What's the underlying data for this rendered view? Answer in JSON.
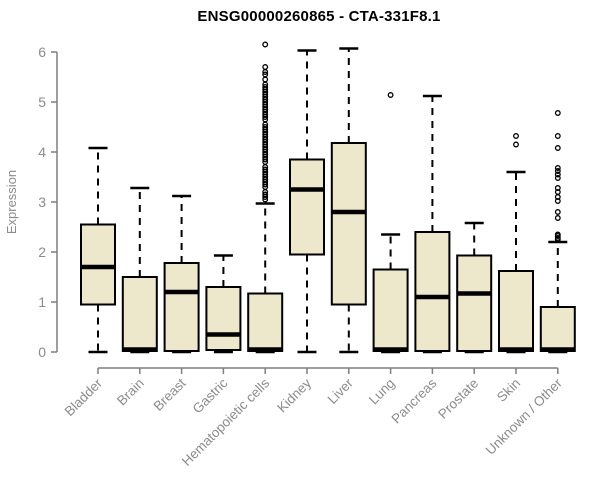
{
  "chart_data": {
    "type": "boxplot",
    "title": "ENSG00000260865 - CTA-331F8.1",
    "ylabel": "Expression",
    "xlabel": "",
    "ylim": [
      0,
      6
    ],
    "yticks": [
      0,
      1,
      2,
      3,
      4,
      5,
      6
    ],
    "grid": false,
    "legend": "none",
    "colors": {
      "box_fill": "#EDE7CB",
      "box_stroke": "#000000",
      "median": "#000000",
      "whisker": "#000000",
      "axis": "#7f7f7f",
      "tick_label": "#8c8c8c",
      "title": "#000000",
      "background": "#ffffff"
    },
    "categories": [
      "Bladder",
      "Brain",
      "Breast",
      "Gastric",
      "Hematopoietic cells",
      "Kidney",
      "Liver",
      "Lung",
      "Pancreas",
      "Prostate",
      "Skin",
      "Unknown / Other"
    ],
    "boxes": [
      {
        "category": "Bladder",
        "whisker_low": 0.0,
        "q1": 0.95,
        "median": 1.7,
        "q3": 2.55,
        "whisker_high": 4.08,
        "outliers": []
      },
      {
        "category": "Brain",
        "whisker_low": 0.0,
        "q1": 0.02,
        "median": 0.05,
        "q3": 1.5,
        "whisker_high": 3.28,
        "outliers": []
      },
      {
        "category": "Breast",
        "whisker_low": 0.0,
        "q1": 0.02,
        "median": 1.2,
        "q3": 1.78,
        "whisker_high": 3.12,
        "outliers": []
      },
      {
        "category": "Gastric",
        "whisker_low": 0.0,
        "q1": 0.04,
        "median": 0.35,
        "q3": 1.3,
        "whisker_high": 1.93,
        "outliers": []
      },
      {
        "category": "Hematopoietic cells",
        "whisker_low": 0.0,
        "q1": 0.02,
        "median": 0.05,
        "q3": 1.17,
        "whisker_high": 2.97,
        "outliers": [
          3.05,
          3.1,
          3.15,
          3.2,
          3.3,
          3.35,
          3.4,
          3.45,
          3.5,
          3.55,
          3.6,
          3.65,
          3.7,
          3.8,
          3.85,
          3.9,
          3.95,
          4.0,
          4.05,
          4.1,
          4.15,
          4.2,
          4.25,
          4.3,
          4.35,
          4.4,
          4.45,
          4.5,
          4.55,
          4.65,
          4.7,
          4.75,
          4.8,
          4.85,
          4.9,
          4.95,
          5.0,
          5.05,
          5.1,
          5.15,
          5.2,
          5.25,
          5.3,
          5.35,
          5.45,
          5.55,
          5.6,
          5.7,
          6.15
        ]
      },
      {
        "category": "Kidney",
        "whisker_low": 0.0,
        "q1": 1.95,
        "median": 3.25,
        "q3": 3.85,
        "whisker_high": 6.03,
        "outliers": []
      },
      {
        "category": "Liver",
        "whisker_low": 0.0,
        "q1": 0.95,
        "median": 2.8,
        "q3": 4.18,
        "whisker_high": 6.07,
        "outliers": []
      },
      {
        "category": "Lung",
        "whisker_low": 0.0,
        "q1": 0.02,
        "median": 0.05,
        "q3": 1.65,
        "whisker_high": 2.35,
        "outliers": [
          5.14
        ]
      },
      {
        "category": "Pancreas",
        "whisker_low": 0.0,
        "q1": 0.02,
        "median": 1.1,
        "q3": 2.4,
        "whisker_high": 5.12,
        "outliers": []
      },
      {
        "category": "Prostate",
        "whisker_low": 0.0,
        "q1": 0.02,
        "median": 1.17,
        "q3": 1.93,
        "whisker_high": 2.58,
        "outliers": []
      },
      {
        "category": "Skin",
        "whisker_low": 0.0,
        "q1": 0.02,
        "median": 0.05,
        "q3": 1.62,
        "whisker_high": 3.6,
        "outliers": [
          4.15,
          4.32
        ]
      },
      {
        "category": "Unknown / Other",
        "whisker_low": 0.0,
        "q1": 0.02,
        "median": 0.05,
        "q3": 0.9,
        "whisker_high": 2.2,
        "outliers": [
          2.25,
          2.28,
          2.32,
          2.35,
          2.68,
          2.8,
          3.02,
          3.1,
          3.2,
          3.28,
          3.48,
          3.55,
          3.62,
          3.68,
          4.08,
          4.32,
          4.78
        ]
      }
    ]
  }
}
